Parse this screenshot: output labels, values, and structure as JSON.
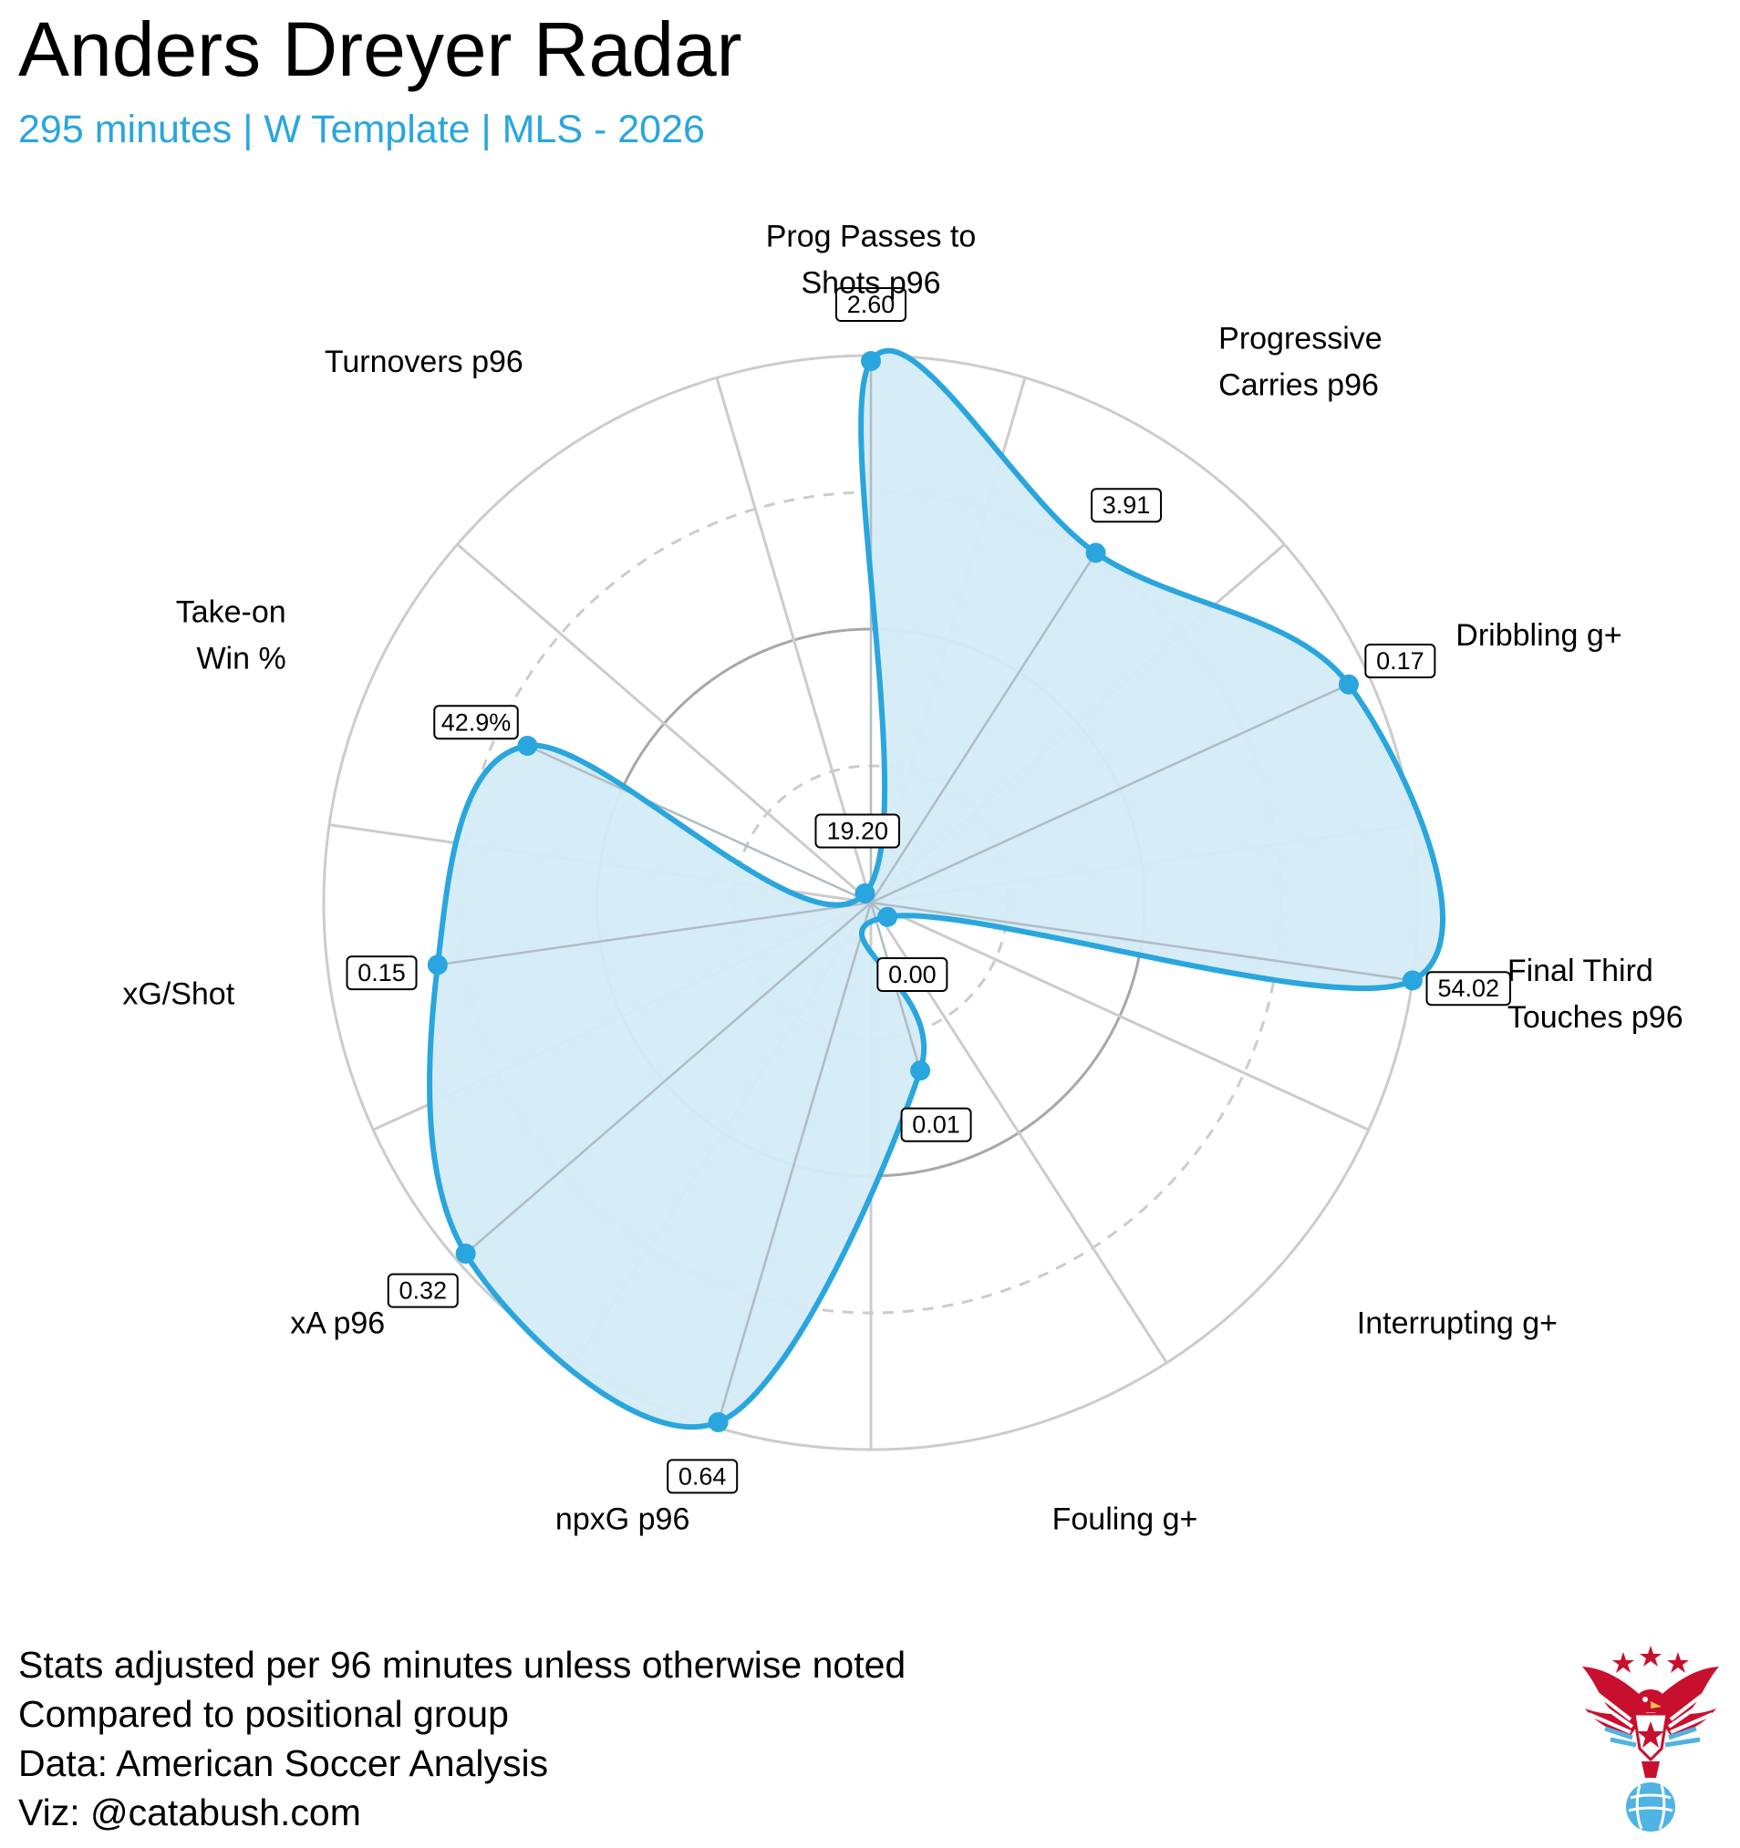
{
  "header": {
    "title": "Anders Dreyer Radar",
    "subtitle": "295 minutes | W Template | MLS - 2026"
  },
  "colors": {
    "accent": "#29a6de",
    "fill": "#d4ebf7",
    "grid": "#cccccc",
    "grid_dark": "#a8a8a8"
  },
  "chart_data": {
    "type": "radar",
    "title": "Anders Dreyer Radar",
    "subtitle": "295 minutes | W Template | MLS - 2026",
    "scale": "percentile 0-100 (rings at 25, 50, 75, 100)",
    "axes": [
      {
        "label": [
          "Prog Passes to",
          "Shots p96"
        ],
        "value_label": "2.60",
        "percentile": 99
      },
      {
        "label": [
          "Progressive",
          "Carries p96"
        ],
        "value_label": "3.91",
        "percentile": 76
      },
      {
        "label": [
          "Dribbling g+"
        ],
        "value_label": "0.17",
        "percentile": 96
      },
      {
        "label": [
          "Final Third",
          "Touches p96"
        ],
        "value_label": "54.02",
        "percentile": 100
      },
      {
        "label": [
          "Interrupting g+"
        ],
        "value_label": "0.00",
        "percentile": 4
      },
      {
        "label": [
          "Fouling g+"
        ],
        "value_label": "0.01",
        "percentile": 32
      },
      {
        "label": [
          "npxG p96"
        ],
        "value_label": "0.64",
        "percentile": 99
      },
      {
        "label": [
          "xA p96"
        ],
        "value_label": "0.32",
        "percentile": 98
      },
      {
        "label": [
          "xG/Shot"
        ],
        "value_label": "0.15",
        "percentile": 80
      },
      {
        "label": [
          "Take-on",
          "Win %"
        ],
        "value_label": "42.9%",
        "percentile": 69
      },
      {
        "label": [
          "Turnovers p96"
        ],
        "value_label": "19.20",
        "percentile": 2
      }
    ]
  },
  "footer": {
    "lines": [
      "Stats adjusted per 96 minutes unless otherwise noted",
      "Compared to positional group",
      "Data: American Soccer Analysis",
      "Viz: @catabush.com"
    ]
  },
  "logo": {
    "icon": "eagle-soccer-logo"
  }
}
